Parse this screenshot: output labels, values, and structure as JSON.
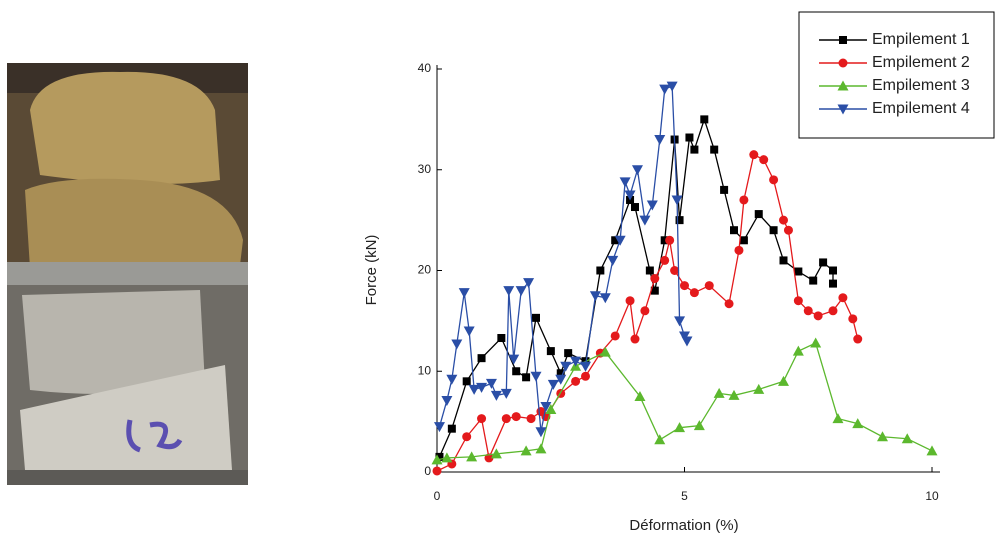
{
  "chart_data": {
    "type": "line",
    "xlabel": "Déformation (%)",
    "ylabel": "Force (kN)",
    "xlim": [
      0,
      10
    ],
    "ylim": [
      0,
      40
    ],
    "xticks": [
      0,
      5,
      10
    ],
    "yticks": [
      0,
      10,
      20,
      30,
      40
    ],
    "legend": "top-right",
    "series": [
      {
        "name": "Empilement 1",
        "color": "#000000",
        "marker": "square",
        "x": [
          0.05,
          0.3,
          0.6,
          0.9,
          1.3,
          1.6,
          1.8,
          2.0,
          2.3,
          2.5,
          2.65,
          3.0,
          3.3,
          3.6,
          3.9,
          4.0,
          4.3,
          4.4,
          4.6,
          4.8,
          4.9,
          5.1,
          5.2,
          5.4,
          5.6,
          5.8,
          6.0,
          6.2,
          6.5,
          6.8,
          7.0,
          7.3,
          7.6,
          7.8,
          8.0,
          8.0
        ],
        "values": [
          1.5,
          4.3,
          9,
          11.3,
          13.3,
          10,
          9.4,
          15.3,
          12,
          9.8,
          11.8,
          11,
          20,
          23,
          27,
          26.3,
          20,
          18,
          23,
          33,
          25,
          33.2,
          32,
          35,
          32,
          28,
          24,
          23,
          25.6,
          24,
          21,
          19.9,
          19,
          20.8,
          20,
          18.7
        ]
      },
      {
        "name": "Empilement 2",
        "color": "#e41a1c",
        "marker": "circle",
        "x": [
          0.0,
          0.3,
          0.6,
          0.9,
          1.05,
          1.4,
          1.6,
          1.9,
          2.1,
          2.2,
          2.5,
          2.8,
          3.0,
          3.3,
          3.6,
          3.9,
          4.0,
          4.2,
          4.4,
          4.6,
          4.7,
          4.8,
          5.0,
          5.2,
          5.5,
          5.9,
          6.1,
          6.2,
          6.4,
          6.6,
          6.8,
          7.0,
          7.1,
          7.3,
          7.5,
          7.7,
          8.0,
          8.2,
          8.4,
          8.5
        ],
        "values": [
          0.1,
          0.8,
          3.5,
          5.3,
          1.4,
          5.3,
          5.5,
          5.3,
          6,
          5.5,
          7.8,
          9,
          9.5,
          11.8,
          13.5,
          17,
          13.2,
          16,
          19.2,
          21,
          23,
          20,
          18.5,
          17.8,
          18.5,
          16.7,
          22,
          27,
          31.5,
          31,
          29,
          25,
          24,
          17,
          16,
          15.5,
          16,
          17.3,
          15.2,
          13.2
        ]
      },
      {
        "name": "Empilement 3",
        "color": "#5cb82e",
        "marker": "triangle-up",
        "x": [
          0,
          0.2,
          0.7,
          1.2,
          1.8,
          2.1,
          2.3,
          2.8,
          3.4,
          4.1,
          4.5,
          4.9,
          5.3,
          5.7,
          6.0,
          6.5,
          7.0,
          7.3,
          7.65,
          8.1,
          8.5,
          9.0,
          9.5,
          10.0
        ],
        "values": [
          1.2,
          1.4,
          1.5,
          1.8,
          2.1,
          2.3,
          6.2,
          10.5,
          11.9,
          7.5,
          3.2,
          4.4,
          4.6,
          7.8,
          7.6,
          8.2,
          9,
          12,
          12.8,
          5.3,
          4.8,
          3.5,
          3.3,
          2.1
        ]
      },
      {
        "name": "Empilement 4",
        "color": "#2a4ea6",
        "marker": "triangle-down",
        "x": [
          0.05,
          0.2,
          0.3,
          0.4,
          0.55,
          0.65,
          0.75,
          0.9,
          1.1,
          1.2,
          1.4,
          1.45,
          1.55,
          1.7,
          1.85,
          2.0,
          2.1,
          2.2,
          2.35,
          2.5,
          2.6,
          2.8,
          3.0,
          3.2,
          3.4,
          3.55,
          3.7,
          3.8,
          3.9,
          4.05,
          4.2,
          4.35,
          4.5,
          4.6,
          4.75,
          4.85,
          4.9,
          5.0,
          5.05
        ],
        "values": [
          4.5,
          7.1,
          9.2,
          12.7,
          17.8,
          14,
          8.2,
          8.4,
          8.8,
          7.6,
          7.8,
          18,
          11.2,
          18,
          18.8,
          9.5,
          4,
          6.5,
          8.7,
          9.2,
          10.5,
          11,
          10.5,
          17.5,
          17.3,
          21,
          23,
          28.8,
          27.5,
          30,
          25,
          26.5,
          33,
          38,
          38.3,
          27,
          15,
          13.5,
          13
        ]
      }
    ]
  }
}
